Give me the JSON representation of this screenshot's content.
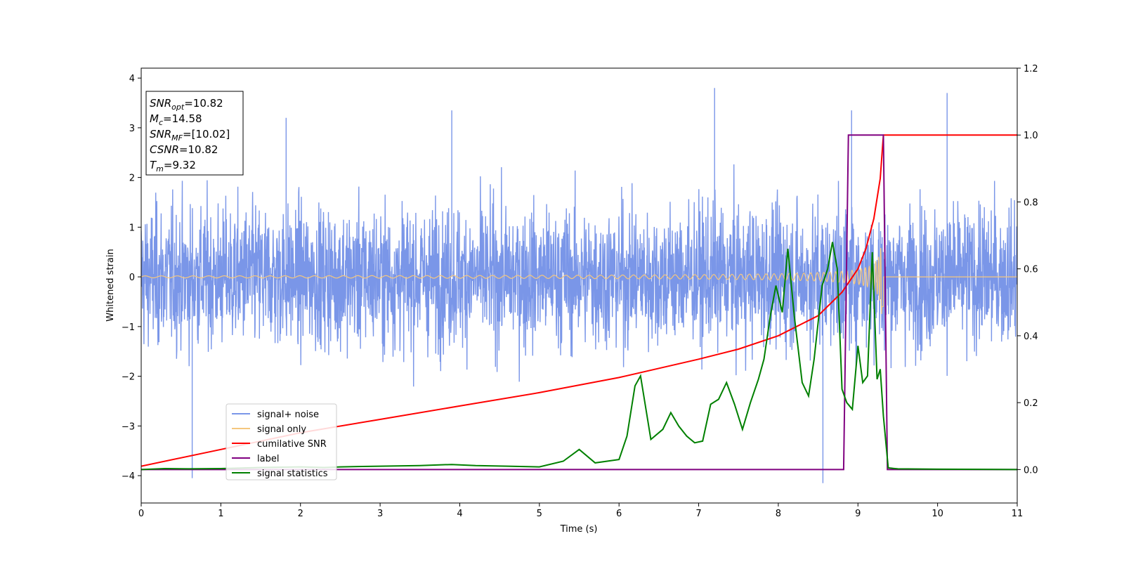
{
  "chart_data": {
    "type": "line",
    "xlabel": "Time (s)",
    "ylabel": "Whitened strain",
    "xlim": [
      0,
      11
    ],
    "ylim": [
      -4.55,
      4.2
    ],
    "y2lim": [
      -0.1,
      1.2
    ],
    "x_ticks": [
      "0",
      "1",
      "2",
      "3",
      "4",
      "5",
      "6",
      "7",
      "8",
      "9",
      "10",
      "11"
    ],
    "y_ticks": [
      "4",
      "3",
      "2",
      "1",
      "0",
      "−1",
      "−2",
      "−3",
      "−4"
    ],
    "y2_ticks": [
      "1.2",
      "1.0",
      "0.8",
      "0.6",
      "0.4",
      "0.2",
      "0.0"
    ],
    "legend": {
      "placement": "lower-left",
      "entries": [
        "signal+ noise",
        "signal only",
        "cumilative SNR",
        "label",
        "signal statistics"
      ]
    },
    "annotation": [
      {
        "key": "SNR",
        "sub": "opt",
        "value": "=10.82"
      },
      {
        "key": "M",
        "sub": "c",
        "value": "=14.58"
      },
      {
        "key": "SNR",
        "sub": "MF",
        "value": "=[10.02]"
      },
      {
        "key": "CSNR",
        "sub": "",
        "value": "=10.82"
      },
      {
        "key": "T",
        "sub": "m",
        "value": "=9.32"
      }
    ],
    "series": [
      {
        "name": "signal+ noise",
        "axis": "left",
        "color": "#7a96e8",
        "noise_envelope": {
          "typical_amplitude": 1.6,
          "peak_amplitude": 3.8
        },
        "spikes": [
          [
            0.64,
            -4.05
          ],
          [
            7.2,
            3.8
          ],
          [
            8.56,
            -4.15
          ],
          [
            10.12,
            3.7
          ],
          [
            8.92,
            3.35
          ],
          [
            3.9,
            3.35
          ],
          [
            1.82,
            3.2
          ]
        ]
      },
      {
        "name": "signal only",
        "axis": "left",
        "color": "#f5c77e",
        "chirp": {
          "start": 0,
          "merger": 9.32,
          "amplitude_start": 0.02,
          "amplitude_merger": 1.35
        }
      },
      {
        "name": "cumilative SNR",
        "axis": "right",
        "color": "#ff0000",
        "x": [
          0,
          1,
          2,
          3,
          4,
          5,
          6,
          7,
          7.5,
          8,
          8.5,
          8.8,
          9.0,
          9.1,
          9.2,
          9.28,
          9.32,
          11
        ],
        "y": [
          0.01,
          0.06,
          0.11,
          0.15,
          0.19,
          0.23,
          0.275,
          0.33,
          0.36,
          0.4,
          0.46,
          0.53,
          0.6,
          0.66,
          0.75,
          0.87,
          1.0,
          1.0
        ]
      },
      {
        "name": "label",
        "axis": "right",
        "color": "#800080",
        "x": [
          0,
          8.82,
          8.88,
          9.32,
          9.37,
          11
        ],
        "y": [
          0,
          0,
          1,
          1,
          0,
          0
        ]
      },
      {
        "name": "signal statistics",
        "axis": "right",
        "color": "#008000",
        "x": [
          0,
          0.3,
          0.6,
          1.0,
          1.5,
          2.0,
          2.3,
          2.5,
          3.0,
          3.5,
          3.9,
          4.2,
          4.6,
          5.0,
          5.3,
          5.5,
          5.7,
          6.0,
          6.1,
          6.2,
          6.27,
          6.4,
          6.55,
          6.65,
          6.75,
          6.85,
          6.95,
          7.05,
          7.15,
          7.25,
          7.35,
          7.45,
          7.55,
          7.65,
          7.75,
          7.82,
          7.9,
          7.97,
          8.05,
          8.12,
          8.2,
          8.3,
          8.38,
          8.45,
          8.55,
          8.62,
          8.68,
          8.74,
          8.8,
          8.86,
          8.93,
          9.0,
          9.06,
          9.12,
          9.18,
          9.24,
          9.28,
          9.32,
          9.38,
          9.5,
          10.0,
          11.0
        ],
        "y": [
          0.0,
          0.003,
          0.002,
          0.003,
          0.006,
          0.008,
          0.006,
          0.008,
          0.01,
          0.012,
          0.015,
          0.012,
          0.01,
          0.008,
          0.025,
          0.06,
          0.02,
          0.03,
          0.1,
          0.25,
          0.28,
          0.09,
          0.12,
          0.17,
          0.13,
          0.1,
          0.08,
          0.085,
          0.195,
          0.21,
          0.26,
          0.195,
          0.12,
          0.2,
          0.27,
          0.33,
          0.46,
          0.55,
          0.47,
          0.66,
          0.46,
          0.26,
          0.22,
          0.33,
          0.55,
          0.6,
          0.68,
          0.6,
          0.24,
          0.2,
          0.18,
          0.37,
          0.26,
          0.28,
          0.65,
          0.27,
          0.3,
          0.16,
          0.005,
          0.002,
          0.001,
          0.0
        ]
      }
    ]
  }
}
